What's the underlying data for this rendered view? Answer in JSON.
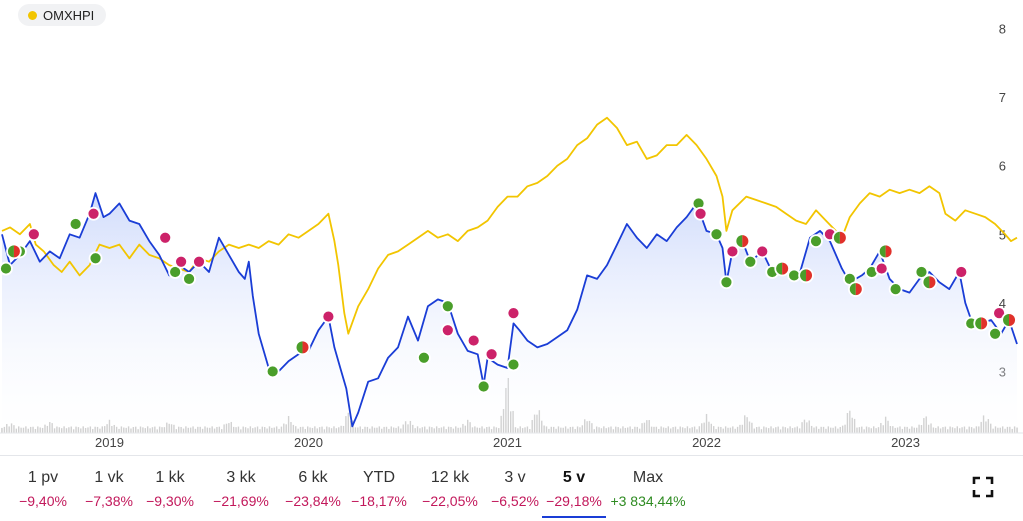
{
  "legend": {
    "label": "OMXHPI",
    "color": "#f2c500"
  },
  "colors": {
    "main_line": "#1a3dd6",
    "compare_line": "#f2c500",
    "buy": "#4a9e2a",
    "sell": "#cc2269",
    "volume": "#c8c8c8"
  },
  "periods": [
    {
      "label": "1 pv",
      "change": "−9,40%",
      "positive": false,
      "active": false
    },
    {
      "label": "1 vk",
      "change": "−7,38%",
      "positive": false,
      "active": false
    },
    {
      "label": "1 kk",
      "change": "−9,30%",
      "positive": false,
      "active": false
    },
    {
      "label": "3 kk",
      "change": "−21,69%",
      "positive": false,
      "active": false
    },
    {
      "label": "6 kk",
      "change": "−23,84%",
      "positive": false,
      "active": false
    },
    {
      "label": "YTD",
      "change": "−18,17%",
      "positive": false,
      "active": false
    },
    {
      "label": "12 kk",
      "change": "−22,05%",
      "positive": false,
      "active": false
    },
    {
      "label": "3 v",
      "change": "−6,52%",
      "positive": false,
      "active": false
    },
    {
      "label": "5 v",
      "change": "−29,18%",
      "positive": false,
      "active": true
    },
    {
      "label": "Max",
      "change": "+3 834,44%",
      "positive": true,
      "active": false
    }
  ],
  "chart_data": {
    "type": "line",
    "x_range": [
      2018.46,
      2023.56
    ],
    "ylim": [
      2.0,
      8.3
    ],
    "x_ticks": [
      2019,
      2020,
      2021,
      2022,
      2023
    ],
    "x_tick_labels": [
      "2019",
      "2020",
      "2021",
      "2022",
      "2023"
    ],
    "y_ticks": [
      3,
      4,
      5,
      6,
      7,
      8
    ],
    "y_tick_labels": [
      "3",
      "4",
      "5",
      "6",
      "7",
      "8"
    ],
    "grid": false,
    "legend_position": "top-left",
    "series": [
      {
        "values": [
          [
            2018.46,
            5.0
          ],
          [
            2018.5,
            4.55
          ],
          [
            2018.55,
            4.7
          ],
          [
            2018.6,
            4.9
          ],
          [
            2018.65,
            4.6
          ],
          [
            2018.7,
            4.75
          ],
          [
            2018.75,
            4.65
          ],
          [
            2018.8,
            5.0
          ],
          [
            2018.85,
            4.95
          ],
          [
            2018.9,
            5.3
          ],
          [
            2018.93,
            5.6
          ],
          [
            2018.97,
            5.25
          ],
          [
            2019.0,
            5.3
          ],
          [
            2019.05,
            5.45
          ],
          [
            2019.1,
            5.2
          ],
          [
            2019.15,
            5.15
          ],
          [
            2019.2,
            4.9
          ],
          [
            2019.25,
            4.7
          ],
          [
            2019.3,
            4.4
          ],
          [
            2019.35,
            4.55
          ],
          [
            2019.4,
            4.45
          ],
          [
            2019.45,
            4.6
          ],
          [
            2019.5,
            4.45
          ],
          [
            2019.55,
            4.95
          ],
          [
            2019.6,
            4.7
          ],
          [
            2019.65,
            4.45
          ],
          [
            2019.68,
            4.35
          ],
          [
            2019.7,
            4.6
          ],
          [
            2019.72,
            4.1
          ],
          [
            2019.75,
            3.55
          ],
          [
            2019.8,
            3.05
          ],
          [
            2019.85,
            3.0
          ],
          [
            2019.9,
            3.15
          ],
          [
            2019.95,
            3.25
          ],
          [
            2020.0,
            3.3
          ],
          [
            2020.05,
            3.6
          ],
          [
            2020.1,
            3.8
          ],
          [
            2020.13,
            3.35
          ],
          [
            2020.16,
            3.05
          ],
          [
            2020.19,
            2.75
          ],
          [
            2020.22,
            2.2
          ],
          [
            2020.25,
            2.4
          ],
          [
            2020.3,
            2.85
          ],
          [
            2020.35,
            2.9
          ],
          [
            2020.4,
            3.2
          ],
          [
            2020.45,
            3.35
          ],
          [
            2020.5,
            3.8
          ],
          [
            2020.55,
            3.45
          ],
          [
            2020.6,
            3.95
          ],
          [
            2020.65,
            4.05
          ],
          [
            2020.7,
            4.0
          ],
          [
            2020.75,
            3.55
          ],
          [
            2020.8,
            3.3
          ],
          [
            2020.85,
            3.25
          ],
          [
            2020.88,
            2.8
          ],
          [
            2020.9,
            3.2
          ],
          [
            2020.95,
            3.1
          ],
          [
            2021.0,
            3.05
          ],
          [
            2021.03,
            3.7
          ],
          [
            2021.06,
            3.6
          ],
          [
            2021.1,
            3.45
          ],
          [
            2021.15,
            3.35
          ],
          [
            2021.2,
            3.4
          ],
          [
            2021.25,
            3.5
          ],
          [
            2021.3,
            3.6
          ],
          [
            2021.35,
            3.9
          ],
          [
            2021.4,
            4.4
          ],
          [
            2021.45,
            4.35
          ],
          [
            2021.5,
            4.55
          ],
          [
            2021.55,
            4.85
          ],
          [
            2021.6,
            5.15
          ],
          [
            2021.65,
            4.95
          ],
          [
            2021.7,
            4.8
          ],
          [
            2021.75,
            5.0
          ],
          [
            2021.8,
            4.9
          ],
          [
            2021.85,
            5.1
          ],
          [
            2021.9,
            5.25
          ],
          [
            2021.95,
            5.45
          ],
          [
            2022.0,
            5.05
          ],
          [
            2022.05,
            5.0
          ],
          [
            2022.08,
            4.8
          ],
          [
            2022.1,
            4.3
          ],
          [
            2022.13,
            4.75
          ],
          [
            2022.18,
            4.9
          ],
          [
            2022.22,
            4.6
          ],
          [
            2022.28,
            4.75
          ],
          [
            2022.33,
            4.45
          ],
          [
            2022.38,
            4.5
          ],
          [
            2022.42,
            4.4
          ],
          [
            2022.47,
            4.45
          ],
          [
            2022.52,
            4.95
          ],
          [
            2022.57,
            5.05
          ],
          [
            2022.62,
            4.9
          ],
          [
            2022.68,
            4.5
          ],
          [
            2022.72,
            4.3
          ],
          [
            2022.78,
            4.4
          ],
          [
            2022.82,
            4.5
          ],
          [
            2022.87,
            4.75
          ],
          [
            2022.92,
            4.35
          ],
          [
            2022.97,
            4.2
          ],
          [
            2023.02,
            4.15
          ],
          [
            2023.07,
            4.35
          ],
          [
            2023.12,
            4.45
          ],
          [
            2023.17,
            4.3
          ],
          [
            2023.22,
            4.2
          ],
          [
            2023.27,
            4.45
          ],
          [
            2023.3,
            4.0
          ],
          [
            2023.33,
            3.75
          ],
          [
            2023.38,
            3.7
          ],
          [
            2023.43,
            3.75
          ],
          [
            2023.48,
            3.55
          ],
          [
            2023.52,
            3.75
          ],
          [
            2023.56,
            3.4
          ]
        ]
      },
      {
        "values": [
          [
            2018.46,
            5.05
          ],
          [
            2018.5,
            5.1
          ],
          [
            2018.55,
            5.0
          ],
          [
            2018.6,
            5.15
          ],
          [
            2018.63,
            4.85
          ],
          [
            2018.67,
            4.75
          ],
          [
            2018.72,
            4.55
          ],
          [
            2018.76,
            4.45
          ],
          [
            2018.8,
            4.6
          ],
          [
            2018.85,
            4.4
          ],
          [
            2018.9,
            4.55
          ],
          [
            2018.95,
            4.85
          ],
          [
            2019.0,
            4.8
          ],
          [
            2019.05,
            4.85
          ],
          [
            2019.1,
            4.65
          ],
          [
            2019.15,
            4.85
          ],
          [
            2019.2,
            4.7
          ],
          [
            2019.25,
            4.65
          ],
          [
            2019.3,
            4.55
          ],
          [
            2019.35,
            4.5
          ],
          [
            2019.4,
            4.45
          ],
          [
            2019.45,
            4.65
          ],
          [
            2019.5,
            4.6
          ],
          [
            2019.55,
            4.75
          ],
          [
            2019.6,
            4.85
          ],
          [
            2019.65,
            4.8
          ],
          [
            2019.7,
            4.85
          ],
          [
            2019.75,
            4.8
          ],
          [
            2019.8,
            4.9
          ],
          [
            2019.85,
            4.85
          ],
          [
            2019.9,
            5.0
          ],
          [
            2019.95,
            4.95
          ],
          [
            2020.0,
            5.05
          ],
          [
            2020.05,
            5.15
          ],
          [
            2020.1,
            5.3
          ],
          [
            2020.13,
            4.9
          ],
          [
            2020.15,
            4.55
          ],
          [
            2020.18,
            3.85
          ],
          [
            2020.2,
            3.55
          ],
          [
            2020.25,
            3.95
          ],
          [
            2020.3,
            4.2
          ],
          [
            2020.35,
            4.5
          ],
          [
            2020.4,
            4.7
          ],
          [
            2020.45,
            4.75
          ],
          [
            2020.5,
            4.85
          ],
          [
            2020.55,
            4.95
          ],
          [
            2020.6,
            5.05
          ],
          [
            2020.65,
            4.95
          ],
          [
            2020.7,
            5.0
          ],
          [
            2020.75,
            4.9
          ],
          [
            2020.8,
            5.05
          ],
          [
            2020.85,
            5.1
          ],
          [
            2020.9,
            5.2
          ],
          [
            2020.95,
            5.4
          ],
          [
            2021.0,
            5.55
          ],
          [
            2021.05,
            5.55
          ],
          [
            2021.1,
            5.7
          ],
          [
            2021.15,
            5.75
          ],
          [
            2021.2,
            5.85
          ],
          [
            2021.25,
            6.0
          ],
          [
            2021.3,
            6.1
          ],
          [
            2021.35,
            6.3
          ],
          [
            2021.4,
            6.4
          ],
          [
            2021.45,
            6.6
          ],
          [
            2021.5,
            6.7
          ],
          [
            2021.55,
            6.55
          ],
          [
            2021.6,
            6.3
          ],
          [
            2021.65,
            6.35
          ],
          [
            2021.7,
            6.1
          ],
          [
            2021.75,
            6.15
          ],
          [
            2021.8,
            6.3
          ],
          [
            2021.85,
            6.3
          ],
          [
            2021.9,
            6.45
          ],
          [
            2021.95,
            6.3
          ],
          [
            2022.0,
            6.1
          ],
          [
            2022.05,
            5.85
          ],
          [
            2022.08,
            5.55
          ],
          [
            2022.1,
            5.05
          ],
          [
            2022.13,
            5.35
          ],
          [
            2022.2,
            5.55
          ],
          [
            2022.25,
            5.5
          ],
          [
            2022.3,
            5.45
          ],
          [
            2022.35,
            5.4
          ],
          [
            2022.4,
            5.3
          ],
          [
            2022.45,
            5.2
          ],
          [
            2022.5,
            5.15
          ],
          [
            2022.55,
            5.35
          ],
          [
            2022.6,
            5.2
          ],
          [
            2022.65,
            5.05
          ],
          [
            2022.68,
            4.95
          ],
          [
            2022.72,
            5.25
          ],
          [
            2022.77,
            5.45
          ],
          [
            2022.82,
            5.6
          ],
          [
            2022.87,
            5.55
          ],
          [
            2022.92,
            5.65
          ],
          [
            2022.97,
            5.6
          ],
          [
            2023.02,
            5.65
          ],
          [
            2023.07,
            5.6
          ],
          [
            2023.12,
            5.7
          ],
          [
            2023.17,
            5.6
          ],
          [
            2023.2,
            5.3
          ],
          [
            2023.25,
            5.2
          ],
          [
            2023.3,
            5.35
          ],
          [
            2023.35,
            5.3
          ],
          [
            2023.4,
            5.25
          ],
          [
            2023.45,
            5.15
          ],
          [
            2023.5,
            5.0
          ],
          [
            2023.53,
            4.9
          ],
          [
            2023.56,
            4.95
          ]
        ]
      }
    ],
    "trade_markers": {
      "buy": [
        [
          2018.48,
          4.5
        ],
        [
          2018.55,
          4.75
        ],
        [
          2018.83,
          5.15
        ],
        [
          2018.93,
          4.65
        ],
        [
          2019.33,
          4.45
        ],
        [
          2019.4,
          4.35
        ],
        [
          2019.82,
          3.0
        ],
        [
          2020.58,
          3.2
        ],
        [
          2020.7,
          3.95
        ],
        [
          2020.88,
          2.78
        ],
        [
          2021.03,
          3.1
        ],
        [
          2021.96,
          5.45
        ],
        [
          2022.05,
          5.0
        ],
        [
          2022.1,
          4.3
        ],
        [
          2022.22,
          4.6
        ],
        [
          2022.33,
          4.45
        ],
        [
          2022.44,
          4.4
        ],
        [
          2022.55,
          4.9
        ],
        [
          2022.72,
          4.35
        ],
        [
          2022.83,
          4.45
        ],
        [
          2022.95,
          4.2
        ],
        [
          2023.08,
          4.45
        ],
        [
          2023.33,
          3.7
        ],
        [
          2023.45,
          3.55
        ]
      ],
      "sell": [
        [
          2018.62,
          5.0
        ],
        [
          2018.92,
          5.3
        ],
        [
          2019.28,
          4.95
        ],
        [
          2019.36,
          4.6
        ],
        [
          2019.45,
          4.6
        ],
        [
          2020.1,
          3.8
        ],
        [
          2020.7,
          3.6
        ],
        [
          2020.83,
          3.45
        ],
        [
          2020.92,
          3.25
        ],
        [
          2021.03,
          3.85
        ],
        [
          2021.97,
          5.3
        ],
        [
          2022.13,
          4.75
        ],
        [
          2022.28,
          4.75
        ],
        [
          2022.62,
          5.0
        ],
        [
          2022.88,
          4.5
        ],
        [
          2023.28,
          4.45
        ],
        [
          2023.47,
          3.85
        ]
      ],
      "mixed": [
        [
          2018.52,
          4.75
        ],
        [
          2019.97,
          3.35
        ],
        [
          2022.18,
          4.9
        ],
        [
          2022.38,
          4.5
        ],
        [
          2022.5,
          4.4
        ],
        [
          2022.67,
          4.95
        ],
        [
          2022.75,
          4.2
        ],
        [
          2022.9,
          4.75
        ],
        [
          2023.12,
          4.3
        ],
        [
          2023.38,
          3.7
        ],
        [
          2023.52,
          3.75
        ]
      ]
    },
    "volume": [
      [
        2018.5,
        0.3
      ],
      [
        2018.7,
        0.35
      ],
      [
        2019.0,
        0.4
      ],
      [
        2019.3,
        0.35
      ],
      [
        2019.6,
        0.4
      ],
      [
        2019.9,
        0.6
      ],
      [
        2020.2,
        0.9
      ],
      [
        2020.5,
        0.5
      ],
      [
        2020.8,
        0.45
      ],
      [
        2021.0,
        3.0
      ],
      [
        2021.15,
        1.2
      ],
      [
        2021.4,
        0.6
      ],
      [
        2021.7,
        0.55
      ],
      [
        2022.0,
        0.7
      ],
      [
        2022.2,
        0.8
      ],
      [
        2022.5,
        0.6
      ],
      [
        2022.72,
        1.1
      ],
      [
        2022.9,
        0.6
      ],
      [
        2023.1,
        0.7
      ],
      [
        2023.4,
        0.8
      ]
    ]
  }
}
